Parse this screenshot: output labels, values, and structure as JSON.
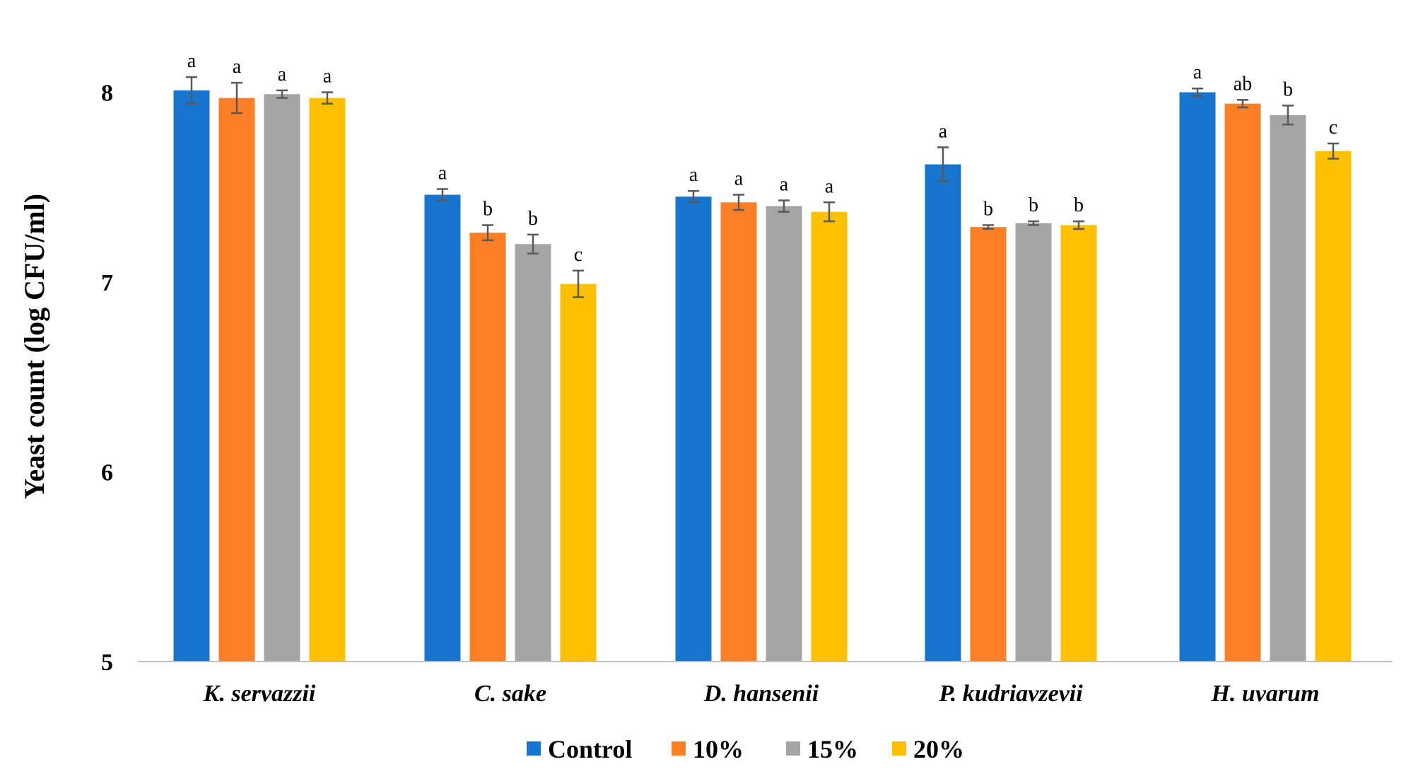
{
  "chart_data": {
    "type": "bar",
    "title": "",
    "xlabel": "",
    "ylabel": "Yeast count (log CFU/ml)",
    "ylim": [
      5,
      8.3
    ],
    "yticks": [
      "5",
      "6",
      "7",
      "8"
    ],
    "grid": false,
    "legend_position": "bottom",
    "categories": [
      "K. servazzii",
      "C. sake",
      "D. hansenii",
      "P. kudriavzevii",
      "H. uvarum"
    ],
    "series": [
      {
        "name": "Control",
        "color": "#1874CD",
        "values": [
          8.01,
          7.46,
          7.45,
          7.62,
          8.0
        ],
        "errors": [
          0.07,
          0.03,
          0.03,
          0.09,
          0.02
        ],
        "labels": [
          "a",
          "a",
          "a",
          "a",
          "a"
        ]
      },
      {
        "name": "10%",
        "color": "#FF7F27",
        "values": [
          7.97,
          7.26,
          7.42,
          7.29,
          7.94
        ],
        "errors": [
          0.08,
          0.04,
          0.04,
          0.01,
          0.02
        ],
        "labels": [
          "a",
          "b",
          "a",
          "b",
          "ab"
        ]
      },
      {
        "name": "15%",
        "color": "#A5A5A5",
        "values": [
          7.99,
          7.2,
          7.4,
          7.31,
          7.88
        ],
        "errors": [
          0.02,
          0.05,
          0.03,
          0.01,
          0.05
        ],
        "labels": [
          "a",
          "b",
          "a",
          "b",
          "b"
        ]
      },
      {
        "name": "20%",
        "color": "#FFC000",
        "values": [
          7.97,
          6.99,
          7.37,
          7.3,
          7.69
        ],
        "errors": [
          0.03,
          0.07,
          0.05,
          0.02,
          0.04
        ],
        "labels": [
          "a",
          "c",
          "a",
          "b",
          "c"
        ]
      }
    ]
  }
}
